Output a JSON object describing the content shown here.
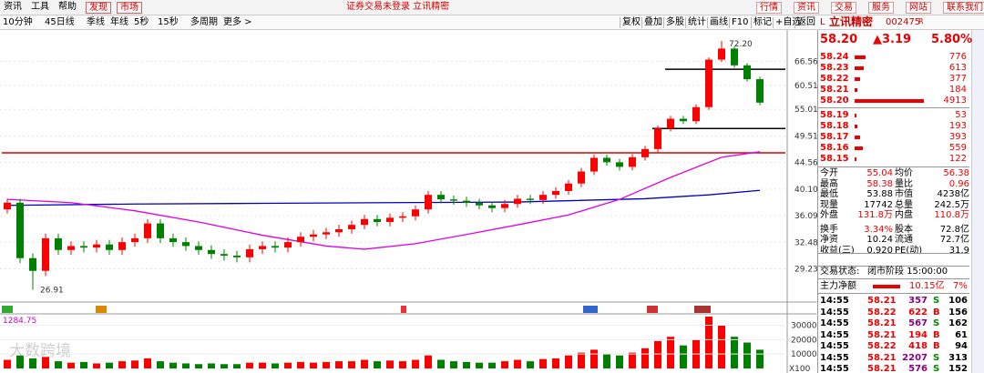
{
  "menu": {
    "items": [
      "资讯",
      "工具",
      "帮助",
      "发现",
      "市场"
    ],
    "center": "证券交易未登录  立讯精密",
    "buttons": [
      "行情",
      "资讯",
      "交易",
      "服务",
      "网站",
      "联系我们"
    ]
  },
  "toolbar": {
    "periods": [
      "10分钟",
      "45日线",
      "季线",
      "年线",
      "5秒",
      "15秒",
      "多周期",
      "更多 >"
    ],
    "tools": [
      "复权",
      "叠加",
      "多股",
      "统计",
      "画线",
      "F10",
      "标记",
      "+自选",
      "返回"
    ]
  },
  "chart_data": {
    "type": "candlestick",
    "open": [
      37,
      38,
      30.5,
      29,
      33,
      31.5,
      32,
      31.8,
      32.2,
      31.5,
      32.5,
      33,
      35,
      33,
      32.5,
      32,
      31.5,
      31,
      30.8,
      30.6,
      31.6,
      32,
      31.8,
      32.5,
      33.2,
      33.5,
      33.8,
      34.2,
      34.8,
      35.6,
      35.2,
      35.8,
      36,
      37,
      39.2,
      38.5,
      38.3,
      38,
      37.6,
      37.2,
      37.8,
      38.6,
      38.4,
      39.2,
      39.8,
      41,
      43,
      45.4,
      44.6,
      43.8,
      45.5,
      47,
      51,
      53,
      52.5,
      55.5,
      67,
      70,
      65.5,
      62
    ],
    "high": [
      38.6,
      38.6,
      31.1,
      33.6,
      33.6,
      32.6,
      32.6,
      32.8,
      32.8,
      33.1,
      33.6,
      35.6,
      35.6,
      33.6,
      33.1,
      32.6,
      32.1,
      31.6,
      31.4,
      32.2,
      32.6,
      32.6,
      33.1,
      33.8,
      34.1,
      34.4,
      34.8,
      35.4,
      36.2,
      36.2,
      36.4,
      36.6,
      37.6,
      39.8,
      39.8,
      39.1,
      38.9,
      38.6,
      38.2,
      38.4,
      39.2,
      39.2,
      39.8,
      40.4,
      41.6,
      43.6,
      46,
      46,
      45.2,
      46.1,
      47.6,
      51.6,
      53.6,
      53.6,
      56.1,
      67.6,
      72.2,
      70.6,
      66.1,
      62.6
    ],
    "low": [
      36.4,
      29.9,
      26.91,
      28.4,
      30.9,
      30.9,
      31.2,
      31.2,
      30.9,
      30.9,
      31.9,
      32.4,
      32.4,
      31.9,
      31.4,
      30.9,
      30.4,
      30.2,
      30,
      30,
      31,
      31.2,
      31.2,
      31.9,
      32.6,
      32.9,
      33.2,
      33.6,
      34.2,
      34.6,
      34.6,
      35.2,
      35.4,
      36.4,
      37.9,
      37.7,
      37.4,
      37,
      36.6,
      36.6,
      37.2,
      37.8,
      37.8,
      38.6,
      39.2,
      40.4,
      42.4,
      44,
      43.2,
      43.2,
      44.9,
      46.4,
      50.4,
      51.9,
      51.9,
      54.9,
      66.4,
      64.9,
      61.4,
      55.9
    ],
    "close": [
      38,
      30.5,
      29,
      33,
      31.5,
      32,
      31.8,
      32.2,
      31.5,
      32.5,
      33,
      35,
      33,
      32.5,
      32,
      31.5,
      31,
      30.8,
      30.6,
      31.6,
      32,
      31.8,
      32.5,
      33.2,
      33.5,
      33.8,
      34.2,
      34.8,
      35.6,
      35.2,
      35.8,
      36,
      37,
      39.2,
      38.5,
      38.3,
      38,
      37.6,
      37.2,
      37.8,
      38.6,
      38.4,
      39.2,
      39.8,
      41,
      43,
      45.4,
      44.6,
      43.8,
      45.5,
      47,
      51,
      53,
      52.5,
      55.5,
      67,
      70,
      65.5,
      62,
      56.5
    ],
    "ylim": [
      26,
      74
    ],
    "log_scale": true,
    "yticks": [
      66.56,
      60.51,
      55.01,
      49.51,
      44.56,
      {
        "value": 40.1,
        "label": "40.10"
      },
      36.09,
      32.48,
      29.23
    ],
    "up_color": "#ff0000",
    "down_color": "#008000",
    "annotations": [
      {
        "text": "72.20",
        "value": 72.2,
        "index": 56
      },
      {
        "text": "26.91",
        "value": 26.91,
        "index": 2
      }
    ],
    "levels": [
      {
        "value": 46.3,
        "from": 0,
        "color": "#e00000"
      },
      {
        "value": 64.5,
        "from": 52,
        "color": "#000000"
      },
      {
        "value": 51,
        "from": 51,
        "color": "#000000"
      }
    ],
    "moving_averages": [
      {
        "color": "#0000c8",
        "x": [
          0,
          10,
          20,
          30,
          40,
          50,
          55,
          59
        ],
        "values": [
          37.6,
          37.8,
          37.9,
          38,
          38.1,
          38.6,
          39.2,
          39.9
        ]
      },
      {
        "color": "#e000e0",
        "x": [
          0,
          5,
          10,
          15,
          20,
          25,
          28,
          32,
          36,
          40,
          44,
          48,
          52,
          56,
          59
        ],
        "values": [
          38.5,
          38,
          36.8,
          35.2,
          33.4,
          32,
          31.6,
          32.3,
          33.5,
          34.8,
          36.2,
          38.5,
          42,
          45.5,
          46.5
        ]
      }
    ],
    "volume": {
      "values": [
        6000,
        9000,
        7000,
        8000,
        5000,
        4000,
        4500,
        3500,
        4000,
        5000,
        5500,
        7000,
        5000,
        4000,
        3500,
        3000,
        3500,
        3000,
        3000,
        4000,
        4000,
        3500,
        4000,
        4500,
        4000,
        4500,
        5000,
        5000,
        6000,
        5000,
        5500,
        5000,
        6000,
        9000,
        6000,
        5000,
        4500,
        4000,
        4000,
        5000,
        6000,
        5000,
        6500,
        7000,
        9000,
        11000,
        13000,
        10000,
        9000,
        11000,
        14000,
        19000,
        22000,
        16000,
        20000,
        36000,
        30000,
        22000,
        18000,
        13000
      ],
      "ylim": [
        0,
        36000
      ],
      "yticks": [
        10000,
        20000,
        30000
      ],
      "unit": "X100",
      "indicator": "1284.75"
    }
  },
  "quote": {
    "market": "L",
    "name": "立讯精密",
    "code": "002475",
    "tag": "R",
    "price": "58.20",
    "change": "▲3.19",
    "percent": "5.80%",
    "asks": [
      {
        "price": "58.24",
        "volume": 776
      },
      {
        "price": "58.23",
        "volume": 613
      },
      {
        "price": "58.22",
        "volume": 377
      },
      {
        "price": "58.21",
        "volume": 184
      },
      {
        "price": "58.20",
        "volume": 4913
      }
    ],
    "bids": [
      {
        "price": "58.19",
        "volume": 53
      },
      {
        "price": "58.18",
        "volume": 193
      },
      {
        "price": "58.17",
        "volume": 393
      },
      {
        "price": "58.16",
        "volume": 559
      },
      {
        "price": "58.15",
        "volume": 122
      }
    ],
    "stats": [
      [
        "今开",
        "55.04",
        "均价",
        "56.38"
      ],
      [
        "最高",
        "58.38",
        "量比",
        "0.96"
      ],
      [
        "最低",
        "53.88",
        "市值",
        "4238亿"
      ],
      [
        "现量",
        "17742",
        "总量",
        "242.5万"
      ],
      [
        "外盘",
        "131.8万",
        "内盘",
        "110.8万"
      ],
      [
        "换手",
        "3.34%",
        "股本",
        "72.8亿"
      ],
      [
        "净资",
        "10.24",
        "流通",
        "72.7亿"
      ],
      [
        "收益(三)",
        "0.920",
        "PE(动)",
        "31.9"
      ]
    ],
    "status_label": "交易状态:",
    "status": "闭市阶段 15:00:00",
    "flow_label": "主力净额",
    "flow": "10.15亿",
    "flow_pct": "7%",
    "trades": [
      [
        "14:55",
        "58.21",
        "357",
        "S",
        "106"
      ],
      [
        "14:55",
        "58.22",
        "622",
        "B",
        "156"
      ],
      [
        "14:55",
        "58.21",
        "567",
        "S",
        "162"
      ],
      [
        "14:55",
        "58.21",
        "194",
        "B",
        "61"
      ],
      [
        "14:55",
        "58.22",
        "418",
        "B",
        "94"
      ],
      [
        "14:55",
        "58.21",
        "2207",
        "S",
        "313"
      ],
      [
        "14:55",
        "58.21",
        "576",
        "S",
        "152"
      ]
    ]
  },
  "watermark": "大数跨境"
}
